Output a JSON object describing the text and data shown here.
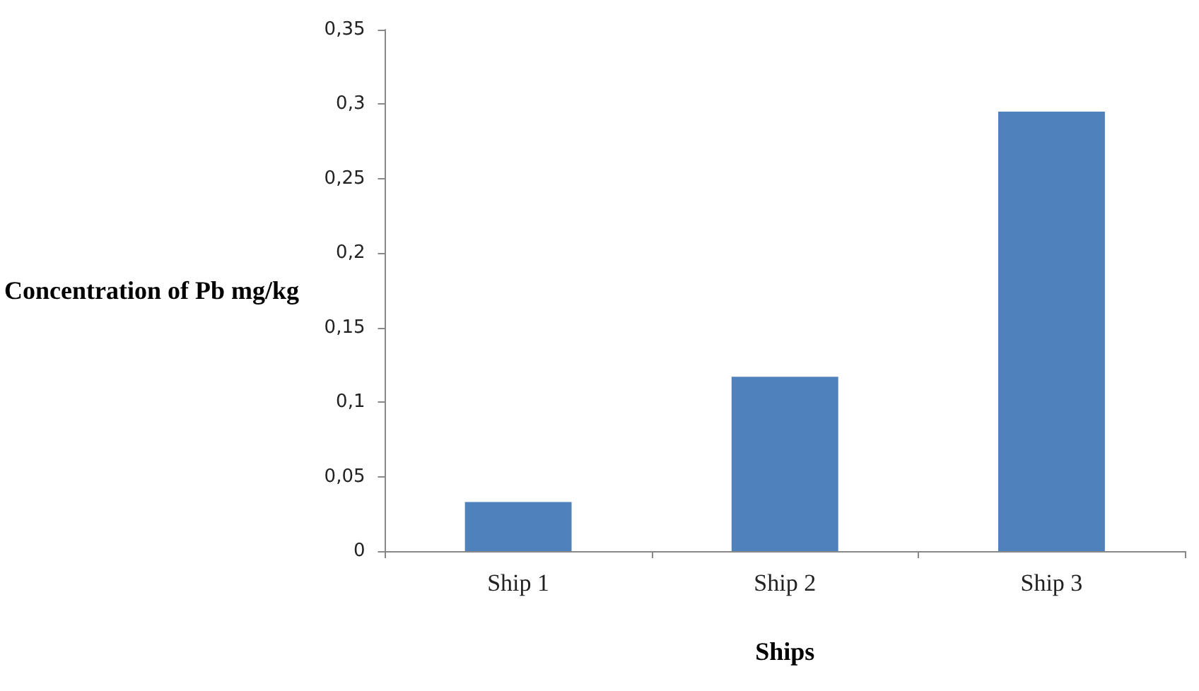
{
  "chart_data": {
    "type": "bar",
    "xlabel": "Ships",
    "ylabel": "Concentration of Pb mg/kg",
    "categories": [
      "Ship 1",
      "Ship 2",
      "Ship 3"
    ],
    "values": [
      0.033,
      0.117,
      0.295
    ],
    "color": "#4f81bd",
    "ylim": [
      0,
      0.35
    ],
    "yticks": [
      0,
      {
        "value": 0.05,
        "label": "0,05"
      },
      {
        "value": 0.1,
        "label": "0,1"
      },
      {
        "value": 0.15,
        "label": "0,15"
      },
      {
        "value": 0.2,
        "label": "0,2"
      },
      {
        "value": 0.25,
        "label": "0,25"
      },
      {
        "value": 0.3,
        "label": "0,3"
      },
      {
        "value": 0.35,
        "label": "0,35"
      }
    ],
    "grid": false
  }
}
